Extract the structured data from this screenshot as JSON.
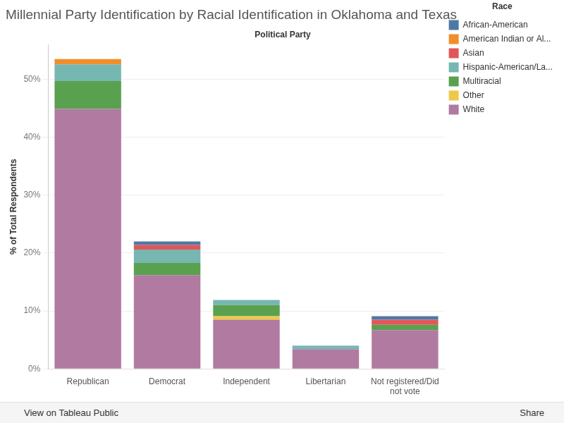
{
  "chart_data": {
    "type": "bar",
    "title": "Millennial Party Identification by Racial Identification in Oklahoma and Texas",
    "x_label": "Political Party",
    "y_label": "% of Total Respondents",
    "legend_title": "Race",
    "categories": [
      "Republican",
      "Democrat",
      "Independent",
      "Libertarian",
      "Not registered/Did not vote"
    ],
    "series": [
      {
        "name": "African-American",
        "color": "#4e79a7",
        "values": [
          0,
          0.6,
          0,
          0,
          0.6
        ]
      },
      {
        "name": "American Indian or Al...",
        "color": "#f28e2b",
        "values": [
          0.9,
          0,
          0,
          0,
          0
        ]
      },
      {
        "name": "Asian",
        "color": "#e15759",
        "values": [
          0,
          0.8,
          0,
          0,
          0.9
        ]
      },
      {
        "name": "Hispanic-American/La...",
        "color": "#76b7b2",
        "values": [
          2.9,
          2.3,
          0.9,
          0.6,
          0
        ]
      },
      {
        "name": "Multiracial",
        "color": "#59a14f",
        "values": [
          4.8,
          2.1,
          1.9,
          0,
          0.9
        ]
      },
      {
        "name": "Other",
        "color": "#edc948",
        "values": [
          0,
          0,
          0.6,
          0,
          0
        ]
      },
      {
        "name": "White",
        "color": "#b07aa1",
        "values": [
          44.9,
          16.2,
          8.5,
          3.4,
          6.7
        ]
      }
    ],
    "ylim": [
      0,
      56
    ],
    "yticks": [
      {
        "value": 0,
        "label": "0%"
      },
      {
        "value": 10,
        "label": "10%"
      },
      {
        "value": 20,
        "label": "20%"
      },
      {
        "value": 30,
        "label": "30%"
      },
      {
        "value": 40,
        "label": "40%"
      },
      {
        "value": 50,
        "label": "50%"
      }
    ],
    "stacked": true,
    "grid": true,
    "legend": "top-right",
    "annotations": [
      "View on Tableau Public",
      "Share"
    ]
  }
}
